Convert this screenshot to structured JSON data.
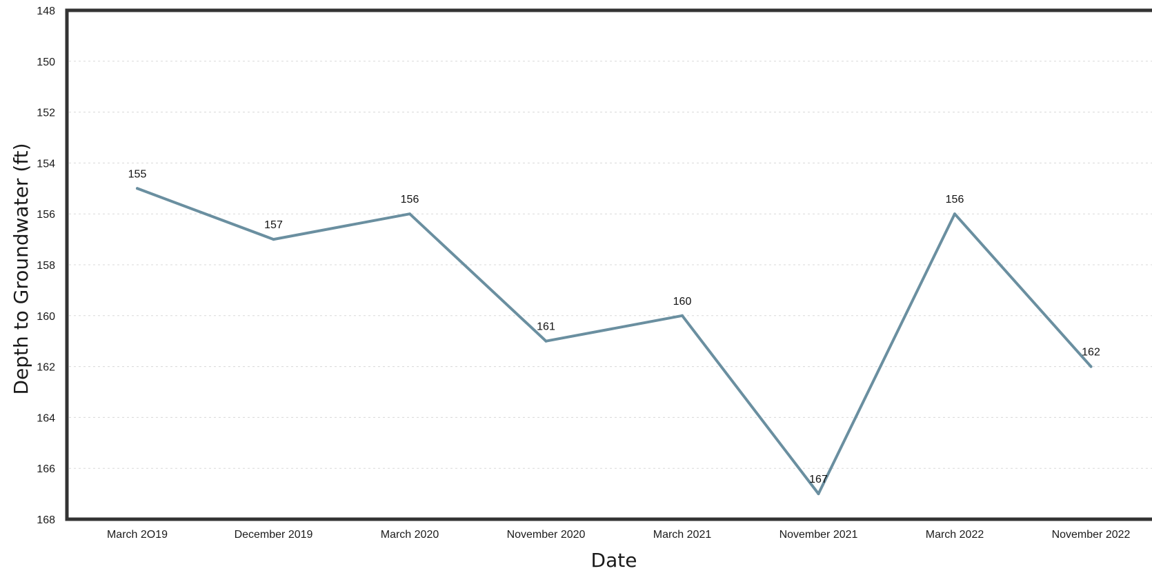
{
  "chart_data": {
    "type": "line",
    "title": "",
    "xlabel": "Date",
    "ylabel": "Depth to Groundwater (ft)",
    "categories": [
      "March 2O19",
      "December 2019",
      "March 2020",
      "November 2020",
      "March 2021",
      "November 2021",
      "March 2022",
      "November 2022"
    ],
    "series": [
      {
        "values": [
          155,
          157,
          156,
          161,
          160,
          167,
          156,
          162
        ],
        "color": "#6a8fa0"
      }
    ],
    "data_labels": [
      "155",
      "157",
      "156",
      "161",
      "160",
      "167",
      "156",
      "162"
    ],
    "y_ticks": [
      "148",
      "150",
      "152",
      "154",
      "156",
      "158",
      "160",
      "162",
      "164",
      "166",
      "168"
    ],
    "ylim": [
      148,
      168
    ],
    "y_inverted": true,
    "grid": true,
    "legend": "none",
    "frame_color": "#333333"
  }
}
